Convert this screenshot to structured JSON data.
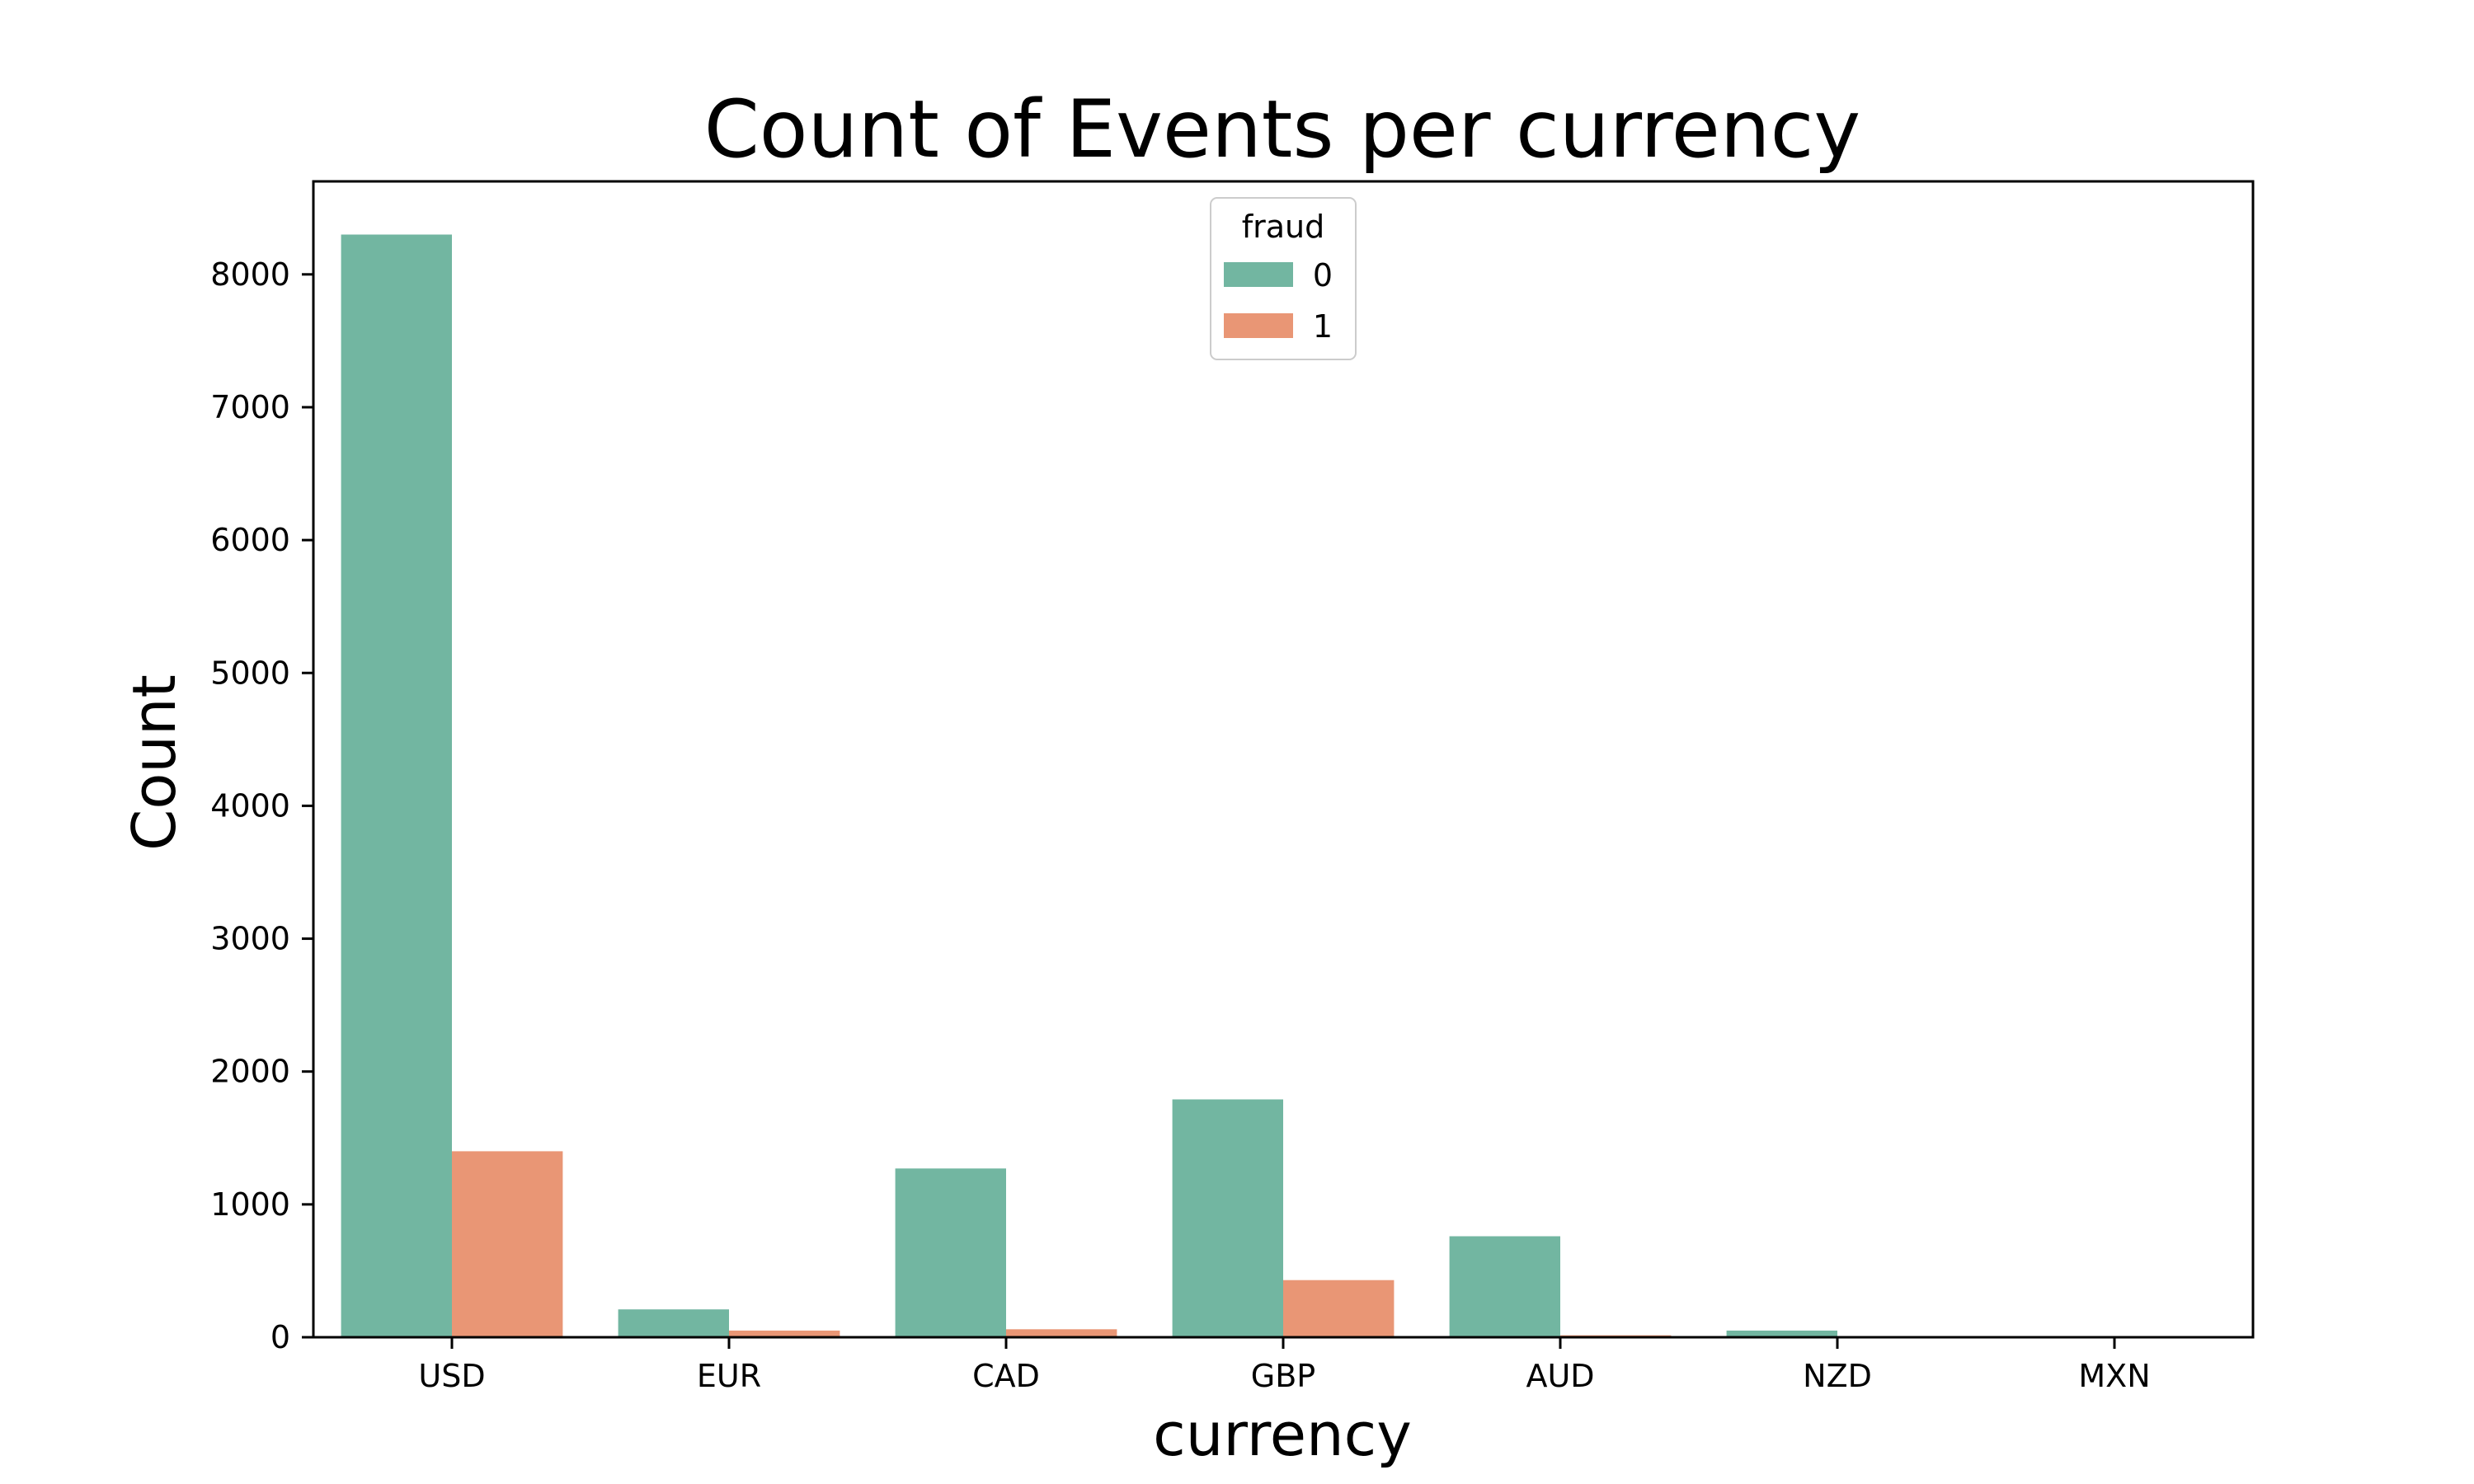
{
  "chart_data": {
    "type": "bar",
    "title": "Count of Events per currency",
    "xlabel": "currency",
    "ylabel": "Count",
    "categories": [
      "USD",
      "EUR",
      "CAD",
      "GBP",
      "AUD",
      "NZD",
      "MXN"
    ],
    "series": [
      {
        "name": "0",
        "color": "#72b6a1",
        "values": [
          8300,
          210,
          1270,
          1790,
          760,
          50,
          5
        ]
      },
      {
        "name": "1",
        "color": "#e99675",
        "values": [
          1400,
          50,
          60,
          430,
          15,
          2,
          1
        ]
      }
    ],
    "ylim": [
      0,
      8700
    ],
    "yticks": [
      0,
      1000,
      2000,
      3000,
      4000,
      5000,
      6000,
      7000,
      8000
    ],
    "legend": {
      "title": "fraud",
      "placement": "upper-center"
    },
    "grid": false
  }
}
